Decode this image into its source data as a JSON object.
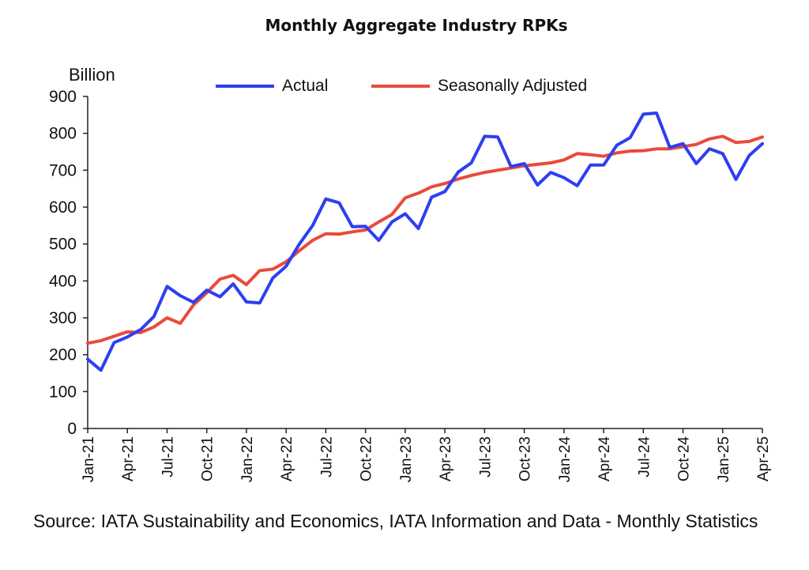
{
  "chart_data": {
    "type": "line",
    "title": "Monthly Aggregate Industry RPKs",
    "ylabel": "Billion",
    "ylim": [
      0,
      900
    ],
    "yticks": [
      0,
      100,
      200,
      300,
      400,
      500,
      600,
      700,
      800,
      900
    ],
    "tick_labels": [
      "Jan-21",
      "Apr-21",
      "Jul-21",
      "Oct-21",
      "Jan-22",
      "Apr-22",
      "Jul-22",
      "Oct-22",
      "Jan-23",
      "Apr-23",
      "Jul-23",
      "Oct-23",
      "Jan-24",
      "Apr-24",
      "Jul-24",
      "Oct-24",
      "Jan-25",
      "Apr-25"
    ],
    "categories": [
      "Jan-21",
      "Feb-21",
      "Mar-21",
      "Apr-21",
      "May-21",
      "Jun-21",
      "Jul-21",
      "Aug-21",
      "Sep-21",
      "Oct-21",
      "Nov-21",
      "Dec-21",
      "Jan-22",
      "Feb-22",
      "Mar-22",
      "Apr-22",
      "May-22",
      "Jun-22",
      "Jul-22",
      "Aug-22",
      "Sep-22",
      "Oct-22",
      "Nov-22",
      "Dec-22",
      "Jan-23",
      "Feb-23",
      "Mar-23",
      "Apr-23",
      "May-23",
      "Jun-23",
      "Jul-23",
      "Aug-23",
      "Sep-23",
      "Oct-23",
      "Nov-23",
      "Dec-23",
      "Jan-24",
      "Feb-24",
      "Mar-24",
      "Apr-24",
      "May-24",
      "Jun-24",
      "Jul-24",
      "Aug-24",
      "Sep-24",
      "Oct-24",
      "Nov-24",
      "Dec-24",
      "Jan-25",
      "Feb-25",
      "Mar-25",
      "Apr-25"
    ],
    "series": [
      {
        "name": "Actual",
        "color": "#2d3ff0",
        "values": [
          188,
          158,
          233,
          248,
          268,
          303,
          385,
          360,
          342,
          375,
          357,
          392,
          343,
          340,
          408,
          440,
          500,
          550,
          622,
          612,
          547,
          548,
          510,
          560,
          582,
          542,
          627,
          642,
          695,
          720,
          792,
          790,
          710,
          718,
          660,
          694,
          680,
          658,
          714,
          714,
          768,
          788,
          852,
          855,
          762,
          772,
          718,
          758,
          745,
          675,
          740,
          772
        ]
      },
      {
        "name": "Seasonally Adjusted",
        "color": "#ea4a3a",
        "values": [
          231,
          238,
          250,
          262,
          260,
          275,
          300,
          285,
          335,
          368,
          405,
          415,
          390,
          428,
          432,
          452,
          482,
          510,
          528,
          527,
          533,
          538,
          560,
          580,
          625,
          638,
          655,
          664,
          676,
          686,
          694,
          700,
          706,
          712,
          716,
          720,
          728,
          745,
          742,
          738,
          747,
          752,
          753,
          758,
          758,
          764,
          770,
          785,
          792,
          775,
          778,
          790
        ]
      }
    ],
    "grid": false,
    "legend": "top"
  },
  "source_text": "Source: IATA Sustainability and Economics, IATA Information and Data - Monthly Statistics"
}
